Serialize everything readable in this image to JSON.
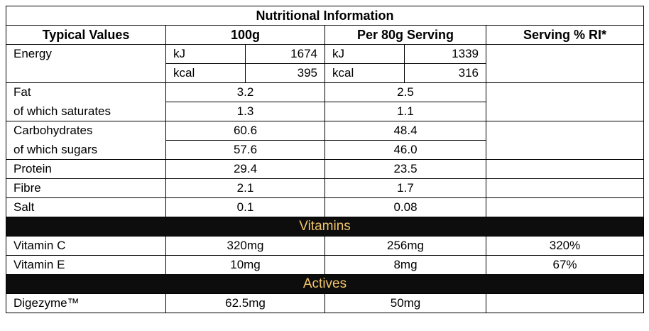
{
  "title": "Nutritional Information",
  "headers": {
    "typical": "Typical Values",
    "per100": "100g",
    "perServing": "Per 80g Serving",
    "ri": "Serving % RI*"
  },
  "energy": {
    "label": "Energy",
    "kj": {
      "unit": "kJ",
      "per100": "1674",
      "perServing": "1339"
    },
    "kcal": {
      "unit": "kcal",
      "per100": "395",
      "perServing": "316"
    }
  },
  "fat": {
    "label": "Fat",
    "per100": "3.2",
    "perServing": "2.5"
  },
  "saturates": {
    "label": "of which saturates",
    "per100": "1.3",
    "perServing": "1.1"
  },
  "carbs": {
    "label": "Carbohydrates",
    "per100": "60.6",
    "perServing": "48.4"
  },
  "sugars": {
    "label": "of which sugars",
    "per100": "57.6",
    "perServing": "46.0"
  },
  "protein": {
    "label": "Protein",
    "per100": "29.4",
    "perServing": "23.5"
  },
  "fibre": {
    "label": "Fibre",
    "per100": "2.1",
    "perServing": "1.7"
  },
  "salt": {
    "label": "Salt",
    "per100": "0.1",
    "perServing": "0.08"
  },
  "vitaminsBand": "Vitamins",
  "vitaminC": {
    "label": "Vitamin C",
    "per100": "320mg",
    "perServing": "256mg",
    "ri": "320%"
  },
  "vitaminE": {
    "label": "Vitamin E",
    "per100": "10mg",
    "perServing": "8mg",
    "ri": "67%"
  },
  "activesBand": "Actives",
  "digezyme": {
    "label": "Digezyme™",
    "per100": "62.5mg",
    "perServing": "50mg",
    "ri": ""
  },
  "colors": {
    "band_bg": "#0d0d0d",
    "band_text": "#f2c56a"
  }
}
